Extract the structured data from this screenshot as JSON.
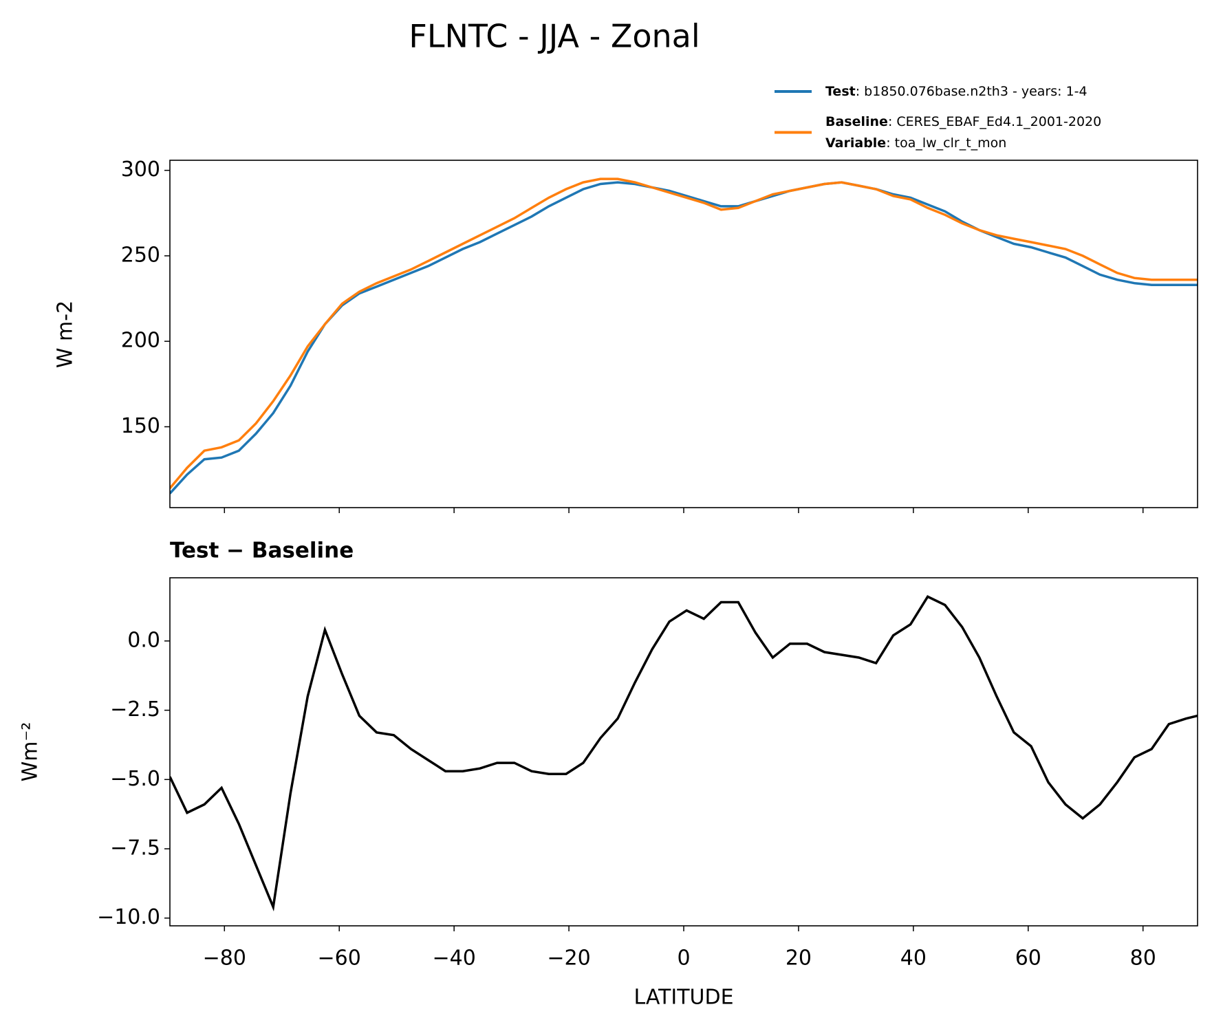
{
  "chart_data": [
    {
      "type": "line",
      "title": "FLNTC - JJA - Zonal",
      "ylabel": "W m-2",
      "legend": "upper right",
      "x": [
        -89.5,
        -86.5,
        -83.5,
        -80.5,
        -77.5,
        -74.5,
        -71.5,
        -68.5,
        -65.5,
        -62.5,
        -59.5,
        -56.5,
        -53.5,
        -50.5,
        -47.5,
        -44.5,
        -41.5,
        -38.5,
        -35.5,
        -32.5,
        -29.5,
        -26.5,
        -23.5,
        -20.5,
        -17.5,
        -14.5,
        -11.5,
        -8.5,
        -5.5,
        -2.5,
        0.5,
        3.5,
        6.5,
        9.5,
        12.5,
        15.5,
        18.5,
        21.5,
        24.5,
        27.5,
        30.5,
        33.5,
        36.5,
        39.5,
        42.5,
        45.5,
        48.5,
        51.5,
        54.5,
        57.5,
        60.5,
        63.5,
        66.5,
        69.5,
        72.5,
        75.5,
        78.5,
        81.5,
        84.5,
        87.5,
        89.5
      ],
      "series": [
        {
          "name": "Test",
          "detail": ": b1850.076base.n2th3 - years: 1-4",
          "color": "#1f77b4",
          "values": [
            111,
            122,
            131,
            132,
            136,
            146,
            158,
            174,
            194,
            210,
            221,
            228,
            232,
            236,
            240,
            244,
            249,
            254,
            258,
            263,
            268,
            273,
            279,
            284,
            289,
            292,
            293,
            292,
            290,
            288,
            285,
            282,
            279,
            279,
            282,
            285,
            288,
            290,
            292,
            293,
            291,
            289,
            286,
            284,
            280,
            276,
            270,
            265,
            261,
            257,
            255,
            252,
            249,
            244,
            239,
            236,
            234,
            233,
            233,
            233,
            233
          ]
        },
        {
          "name": "Baseline",
          "detail": ": CERES_EBAF_Ed4.1_2001-2020",
          "color": "#ff7f0e",
          "values": [
            114,
            126,
            136,
            138,
            142,
            152,
            165,
            180,
            197,
            210,
            222,
            229,
            234,
            238,
            242,
            247,
            252,
            257,
            262,
            267,
            272,
            278,
            284,
            289,
            293,
            295,
            295,
            293,
            290,
            287,
            284,
            281,
            277,
            278,
            282,
            286,
            288,
            290,
            292,
            293,
            291,
            289,
            285,
            283,
            278,
            274,
            269,
            265,
            262,
            260,
            258,
            256,
            254,
            250,
            245,
            240,
            237,
            236,
            236,
            236,
            236
          ]
        }
      ],
      "variable": {
        "name": "Variable",
        "detail": ": toa_lw_clr_t_mon"
      },
      "xlim": [
        -89.5,
        89.5
      ],
      "xticks": [
        -80,
        -60,
        -40,
        -20,
        0,
        20,
        40,
        60,
        80
      ],
      "ylim": [
        102.7,
        305.9
      ],
      "yticks": [
        150,
        200,
        250,
        300
      ]
    },
    {
      "type": "line",
      "title": "Test − Baseline",
      "ylabel": "Wm⁻²",
      "xlabel": "LATITUDE",
      "x": [
        -89.5,
        -86.5,
        -83.5,
        -80.5,
        -77.5,
        -74.5,
        -71.5,
        -68.5,
        -65.5,
        -62.5,
        -59.5,
        -56.5,
        -53.5,
        -50.5,
        -47.5,
        -44.5,
        -41.5,
        -38.5,
        -35.5,
        -32.5,
        -29.5,
        -26.5,
        -23.5,
        -20.5,
        -17.5,
        -14.5,
        -11.5,
        -8.5,
        -5.5,
        -2.5,
        0.5,
        3.5,
        6.5,
        9.5,
        12.5,
        15.5,
        18.5,
        21.5,
        24.5,
        27.5,
        30.5,
        33.5,
        36.5,
        39.5,
        42.5,
        45.5,
        48.5,
        51.5,
        54.5,
        57.5,
        60.5,
        63.5,
        66.5,
        69.5,
        72.5,
        75.5,
        78.5,
        81.5,
        84.5,
        87.5,
        89.5
      ],
      "series": [
        {
          "color": "#000000",
          "values": [
            -4.9,
            -6.2,
            -5.9,
            -5.3,
            -6.6,
            -8.1,
            -9.6,
            -5.5,
            -2.0,
            0.4,
            -1.2,
            -2.7,
            -3.3,
            -3.4,
            -3.9,
            -4.3,
            -4.7,
            -4.7,
            -4.6,
            -4.4,
            -4.4,
            -4.7,
            -4.8,
            -4.8,
            -4.4,
            -3.5,
            -2.8,
            -1.5,
            -0.3,
            0.7,
            1.1,
            0.8,
            1.4,
            1.4,
            0.3,
            -0.6,
            -0.1,
            -0.1,
            -0.4,
            -0.5,
            -0.6,
            -0.8,
            0.2,
            0.6,
            1.6,
            1.3,
            0.5,
            -0.6,
            -2.0,
            -3.3,
            -3.8,
            -5.1,
            -5.9,
            -6.4,
            -5.9,
            -5.1,
            -4.2,
            -3.9,
            -3.0,
            -2.8,
            -2.7
          ]
        }
      ],
      "xlim": [
        -89.5,
        89.5
      ],
      "xticks": [
        {
          "value": -80,
          "label": "−80"
        },
        {
          "value": -60,
          "label": "−60"
        },
        {
          "value": -40,
          "label": "−40"
        },
        {
          "value": -20,
          "label": "−20"
        },
        0,
        20,
        40,
        60,
        80
      ],
      "ylim": [
        -10.28,
        2.28
      ],
      "yticks": [
        {
          "value": -10,
          "label": "−10.0"
        },
        {
          "value": -7.5,
          "label": "−7.5"
        },
        {
          "value": -5,
          "label": "−5.0"
        },
        {
          "value": -2.5,
          "label": "−2.5"
        },
        {
          "value": 0,
          "label": "0.0"
        }
      ]
    }
  ]
}
